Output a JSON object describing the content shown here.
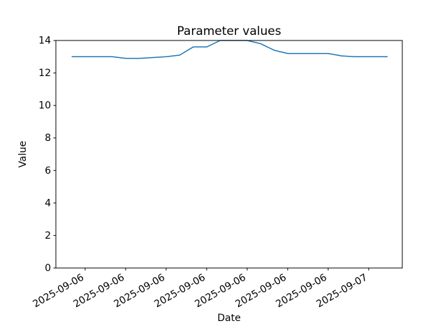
{
  "chart_data": {
    "type": "line",
    "title": "Parameter values",
    "xlabel": "Date",
    "ylabel": "Value",
    "ylim": [
      0,
      14
    ],
    "yticks": [
      0,
      2,
      4,
      6,
      8,
      10,
      12,
      14
    ],
    "xlim_hours": [
      0.83,
      26.49
    ],
    "xticks": [
      {
        "hour": 3,
        "label": "2025-09-06"
      },
      {
        "hour": 6,
        "label": "2025-09-06"
      },
      {
        "hour": 9,
        "label": "2025-09-06"
      },
      {
        "hour": 12,
        "label": "2025-09-06"
      },
      {
        "hour": 15,
        "label": "2025-09-06"
      },
      {
        "hour": 18,
        "label": "2025-09-06"
      },
      {
        "hour": 21,
        "label": "2025-09-06"
      },
      {
        "hour": 24,
        "label": "2025-09-07"
      }
    ],
    "xtick_rotation_deg": 30,
    "grid": false,
    "legend": "none",
    "line_color": "#1f77b4",
    "line_width": 1.5,
    "background_color": "#ffffff",
    "spine_color": "#000000",
    "series": [
      {
        "name": "Parameter",
        "x_hours": [
          2,
          3,
          4,
          5,
          6,
          7,
          8,
          9,
          10,
          11,
          12,
          13,
          14,
          15,
          16,
          17,
          18,
          19,
          20,
          21,
          22,
          23,
          24,
          25,
          25.4
        ],
        "values": [
          13.0,
          13.0,
          13.0,
          13.0,
          12.9,
          12.9,
          12.95,
          13.0,
          13.1,
          13.6,
          13.6,
          14.0,
          14.0,
          14.0,
          13.8,
          13.4,
          13.2,
          13.2,
          13.2,
          13.2,
          13.05,
          13.0,
          13.0,
          13.0,
          13.0
        ]
      }
    ]
  }
}
